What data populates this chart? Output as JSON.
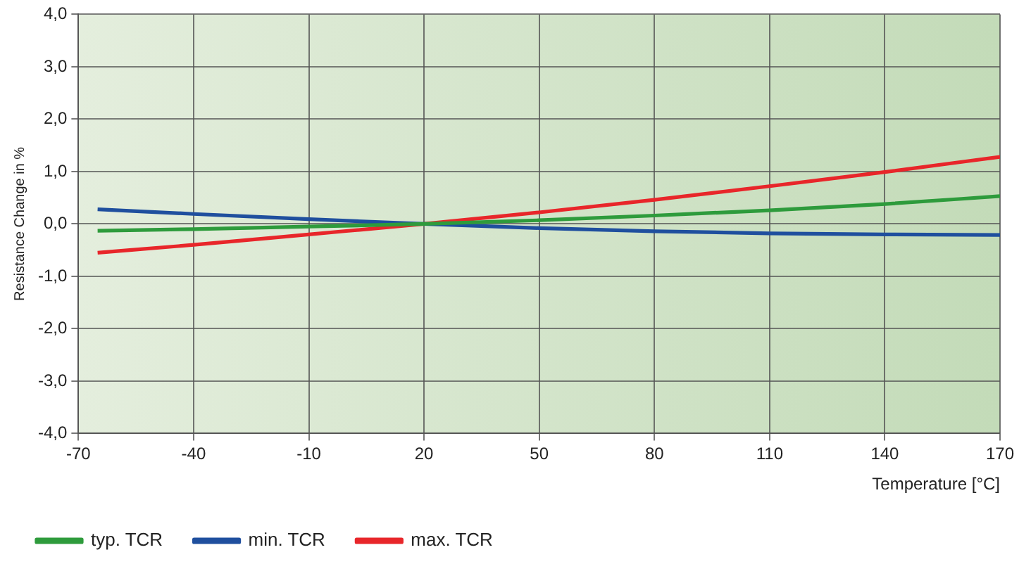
{
  "chart_data": {
    "type": "line",
    "xlabel": "Temperature [°C]",
    "ylabel": "Resistance Change in %",
    "x": [
      -65,
      -40,
      -10,
      20,
      50,
      80,
      110,
      140,
      170
    ],
    "series": [
      {
        "name": "typ. TCR",
        "color": "#2e9b3c",
        "values": [
          -0.13,
          -0.1,
          -0.05,
          0,
          0.07,
          0.16,
          0.26,
          0.38,
          0.53
        ]
      },
      {
        "name": "min. TCR",
        "color": "#1f4f9e",
        "values": [
          0.28,
          0.19,
          0.09,
          0,
          -0.08,
          -0.14,
          -0.18,
          -0.2,
          -0.21
        ]
      },
      {
        "name": "max. TCR",
        "color": "#e8262a",
        "values": [
          -0.55,
          -0.4,
          -0.2,
          0,
          0.22,
          0.46,
          0.72,
          0.99,
          1.28
        ]
      }
    ],
    "xlim": [
      -70,
      170
    ],
    "xticks": [
      -70,
      -40,
      -10,
      20,
      50,
      80,
      110,
      140,
      170
    ],
    "ylim": [
      -4,
      4
    ],
    "yticks": [
      {
        "value": -4,
        "label": "-4,0"
      },
      {
        "value": -3,
        "label": "-3,0"
      },
      {
        "value": -2,
        "label": "-2,0"
      },
      {
        "value": -1,
        "label": "-1,0"
      },
      {
        "value": 0,
        "label": "0,0"
      },
      {
        "value": 1,
        "label": "1,0"
      },
      {
        "value": 2,
        "label": "2,0"
      },
      {
        "value": 3,
        "label": "3,0"
      },
      {
        "value": 4,
        "label": "4,0"
      }
    ],
    "grid": true,
    "legend": "bottom left",
    "marker": "none",
    "line_style": "solid"
  }
}
